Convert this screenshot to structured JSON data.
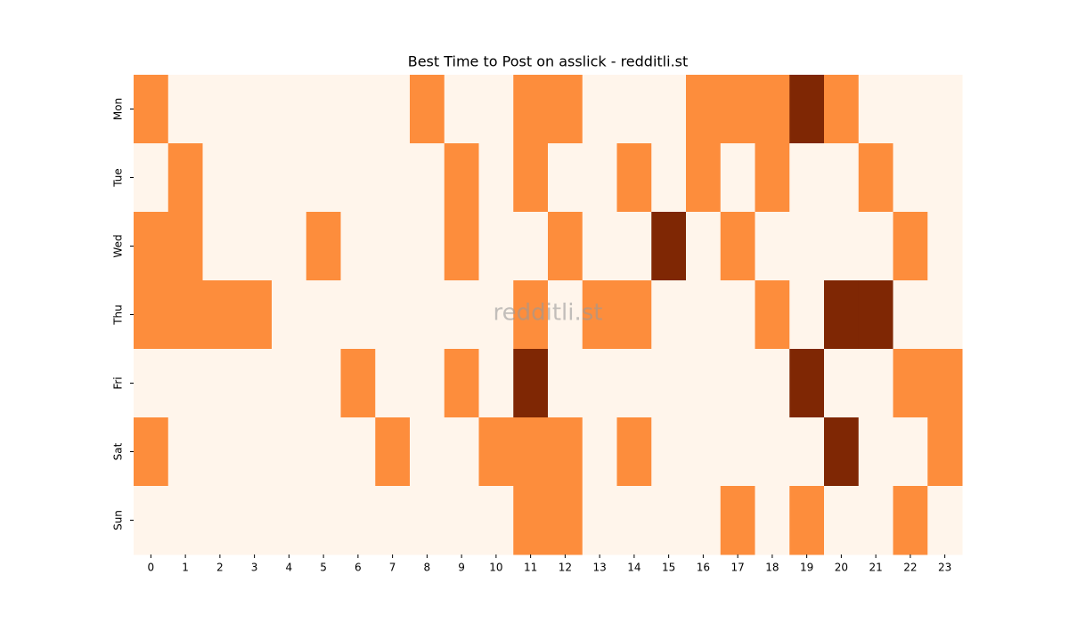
{
  "chart_data": {
    "type": "heatmap",
    "title": "Best Time to Post on asslick - redditli.st",
    "watermark": "redditli.st",
    "x": [
      0,
      1,
      2,
      3,
      4,
      5,
      6,
      7,
      8,
      9,
      10,
      11,
      12,
      13,
      14,
      15,
      16,
      17,
      18,
      19,
      20,
      21,
      22,
      23
    ],
    "y": [
      "Mon",
      "Tue",
      "Wed",
      "Thu",
      "Fri",
      "Sat",
      "Sun"
    ],
    "values": [
      [
        1,
        0,
        0,
        0,
        0,
        0,
        0,
        0,
        1,
        0,
        0,
        1,
        1,
        0,
        0,
        0,
        1,
        1,
        1,
        2,
        1,
        0,
        0,
        0
      ],
      [
        0,
        1,
        0,
        0,
        0,
        0,
        0,
        0,
        0,
        1,
        0,
        1,
        0,
        0,
        1,
        0,
        1,
        0,
        1,
        0,
        0,
        1,
        0,
        0
      ],
      [
        1,
        1,
        0,
        0,
        0,
        1,
        0,
        0,
        0,
        1,
        0,
        0,
        1,
        0,
        0,
        2,
        0,
        1,
        0,
        0,
        0,
        0,
        1,
        0
      ],
      [
        1,
        1,
        1,
        1,
        0,
        0,
        0,
        0,
        0,
        0,
        0,
        1,
        0,
        1,
        1,
        0,
        0,
        0,
        1,
        0,
        2,
        2,
        0,
        0
      ],
      [
        0,
        0,
        0,
        0,
        0,
        0,
        1,
        0,
        0,
        1,
        0,
        2,
        0,
        0,
        0,
        0,
        0,
        0,
        0,
        2,
        0,
        0,
        1,
        1
      ],
      [
        1,
        0,
        0,
        0,
        0,
        0,
        0,
        1,
        0,
        0,
        1,
        1,
        1,
        0,
        1,
        0,
        0,
        0,
        0,
        0,
        2,
        0,
        0,
        1
      ],
      [
        0,
        0,
        0,
        0,
        0,
        0,
        0,
        0,
        0,
        0,
        0,
        1,
        1,
        0,
        0,
        0,
        0,
        1,
        0,
        1,
        0,
        0,
        1,
        0
      ]
    ],
    "zlim": [
      0,
      2
    ],
    "color_scale": [
      "#fff5eb",
      "#fd8d3c",
      "#7f2704"
    ]
  }
}
